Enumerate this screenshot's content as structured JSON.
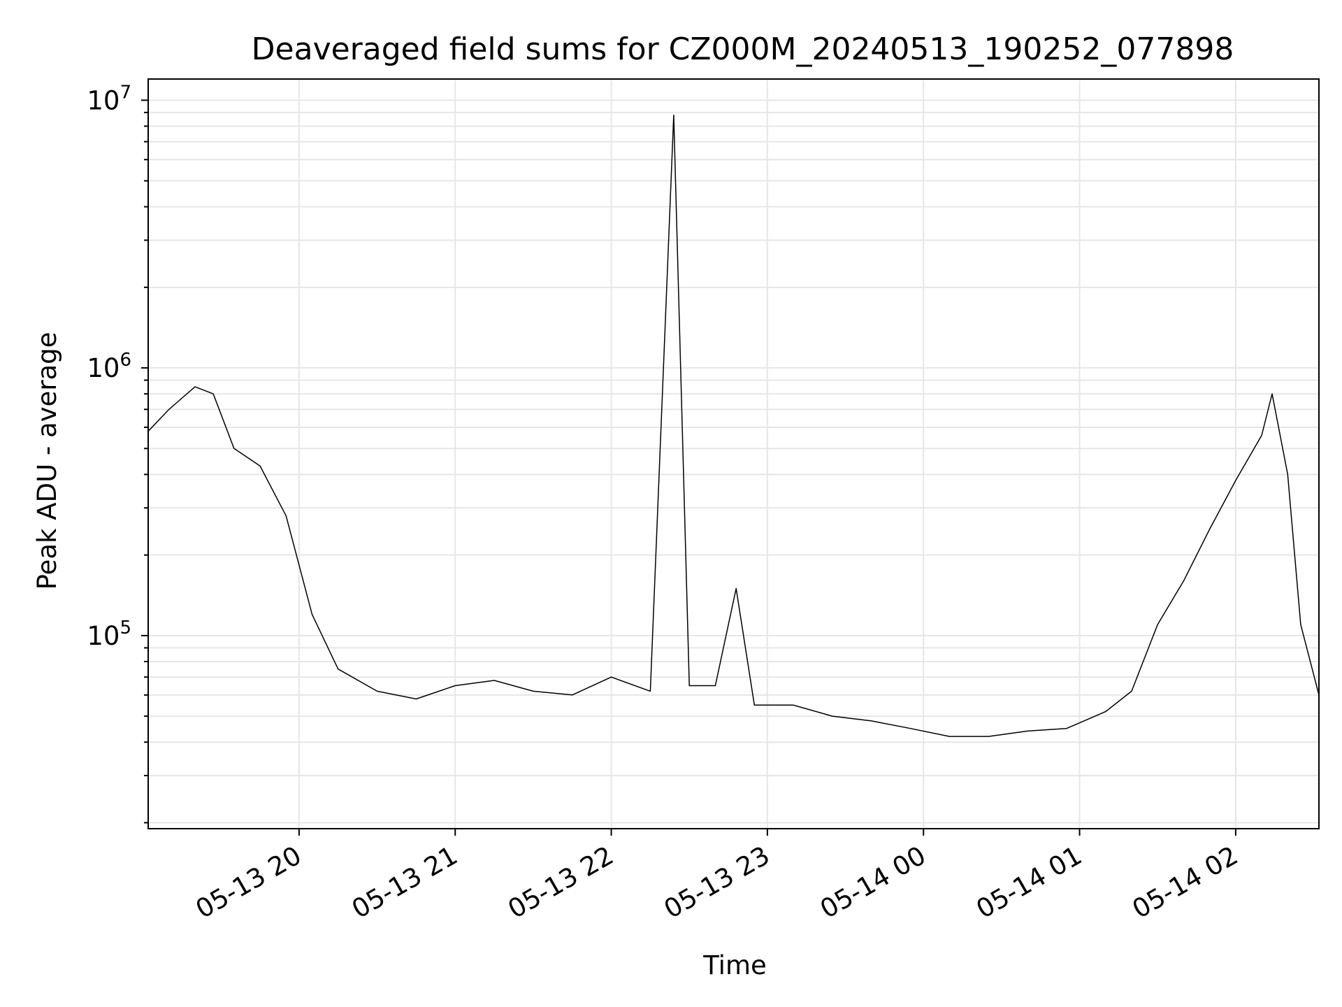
{
  "chart_data": {
    "type": "line",
    "title": "Deaveraged field sums for CZ000M_20240513_190252_077898",
    "xlabel": "Time",
    "ylabel": "Peak ADU - average",
    "yscale": "log",
    "xlim": [
      "2024-05-13 19:02",
      "2024-05-14 02:32"
    ],
    "ylim": [
      19000,
      12000000
    ],
    "x_ticks": [
      {
        "value": "2024-05-13 20:00",
        "label": "05-13 20"
      },
      {
        "value": "2024-05-13 21:00",
        "label": "05-13 21"
      },
      {
        "value": "2024-05-13 22:00",
        "label": "05-13 22"
      },
      {
        "value": "2024-05-13 23:00",
        "label": "05-13 23"
      },
      {
        "value": "2024-05-14 00:00",
        "label": "05-14 00"
      },
      {
        "value": "2024-05-14 01:00",
        "label": "05-14 01"
      },
      {
        "value": "2024-05-14 02:00",
        "label": "05-14 02"
      }
    ],
    "y_ticks": [
      {
        "value": 100000,
        "base": "10",
        "exp": "5"
      },
      {
        "value": 1000000,
        "base": "10",
        "exp": "6"
      },
      {
        "value": 10000000,
        "base": "10",
        "exp": "7"
      }
    ],
    "grid": true,
    "line_color": "#000000",
    "series": [
      {
        "x": [
          "2024-05-13 19:02",
          "2024-05-13 19:10",
          "2024-05-13 19:20",
          "2024-05-13 19:27",
          "2024-05-13 19:35",
          "2024-05-13 19:45",
          "2024-05-13 19:55",
          "2024-05-13 20:05",
          "2024-05-13 20:15",
          "2024-05-13 20:30",
          "2024-05-13 20:45",
          "2024-05-13 21:00",
          "2024-05-13 21:15",
          "2024-05-13 21:30",
          "2024-05-13 21:45",
          "2024-05-13 22:00",
          "2024-05-13 22:15",
          "2024-05-13 22:24",
          "2024-05-13 22:30",
          "2024-05-13 22:40",
          "2024-05-13 22:48",
          "2024-05-13 22:55",
          "2024-05-13 23:10",
          "2024-05-13 23:25",
          "2024-05-13 23:40",
          "2024-05-13 23:55",
          "2024-05-14 00:10",
          "2024-05-14 00:25",
          "2024-05-14 00:40",
          "2024-05-14 00:55",
          "2024-05-14 01:10",
          "2024-05-14 01:20",
          "2024-05-14 01:30",
          "2024-05-14 01:40",
          "2024-05-14 01:50",
          "2024-05-14 02:00",
          "2024-05-14 02:10",
          "2024-05-14 02:14",
          "2024-05-14 02:20",
          "2024-05-14 02:25",
          "2024-05-14 02:32"
        ],
        "y": [
          580000,
          700000,
          850000,
          800000,
          500000,
          430000,
          280000,
          120000,
          75000,
          62000,
          58000,
          65000,
          68000,
          62000,
          60000,
          70000,
          62000,
          8800000,
          65000,
          65000,
          150000,
          55000,
          55000,
          50000,
          48000,
          45000,
          42000,
          42000,
          44000,
          45000,
          52000,
          62000,
          110000,
          160000,
          250000,
          380000,
          560000,
          800000,
          400000,
          110000,
          60000
        ]
      }
    ]
  }
}
